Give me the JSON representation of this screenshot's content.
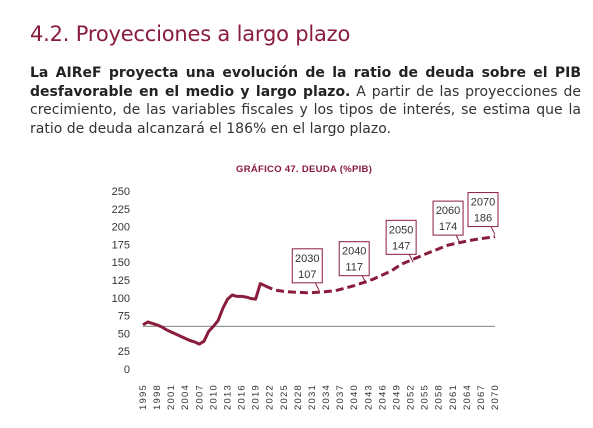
{
  "section": {
    "title": "4.2. Proyecciones a largo plazo"
  },
  "paragraph": {
    "bold_text": "La AIReF proyecta una evolución de la ratio de deuda sobre el PIB desfavorable en el medio y largo plazo.",
    "rest_text": " A partir de las proyecciones de crecimiento, de las variables fiscales y los tipos de interés, se estima que la ratio de deuda alcanzará el 186% en el largo plazo."
  },
  "colors": {
    "accent": "#8a1c3c",
    "text": "#333333",
    "reference_line": "#555555"
  },
  "chart_data": {
    "type": "line",
    "title": "GRÁFICO 47.  DEUDA (%PIB)",
    "xlabel": "",
    "ylabel": "",
    "ylim": [
      0,
      250
    ],
    "xlim": [
      1995,
      2070
    ],
    "y_ticks": [
      0,
      25,
      50,
      75,
      100,
      125,
      150,
      175,
      200,
      225,
      250
    ],
    "x_ticks": [
      1995,
      1998,
      2001,
      2004,
      2007,
      2010,
      2013,
      2016,
      2019,
      2022,
      2025,
      2028,
      2031,
      2034,
      2037,
      2040,
      2043,
      2046,
      2049,
      2052,
      2055,
      2058,
      2061,
      2064,
      2067,
      2070
    ],
    "grid": false,
    "reference_line": {
      "y": 60
    },
    "series": [
      {
        "style": "solid",
        "x": [
          1995,
          1996,
          1997,
          1998,
          1999,
          2000,
          2001,
          2002,
          2003,
          2004,
          2005,
          2006,
          2007,
          2008,
          2009,
          2010,
          2011,
          2012,
          2013,
          2014,
          2015,
          2016,
          2017,
          2018,
          2019,
          2020,
          2021
        ],
        "values": [
          62,
          66,
          64,
          62,
          59,
          55,
          52,
          49,
          46,
          43,
          40,
          38,
          35,
          39,
          53,
          60,
          68,
          85,
          98,
          104,
          102,
          102,
          101,
          99,
          98,
          120,
          117
        ]
      },
      {
        "style": "dashed",
        "x": [
          2021,
          2023,
          2025,
          2027,
          2030,
          2033,
          2036,
          2040,
          2044,
          2048,
          2050,
          2055,
          2060,
          2065,
          2070
        ],
        "values": [
          117,
          111,
          109,
          108,
          107,
          108,
          110,
          117,
          126,
          138,
          147,
          161,
          174,
          181,
          186
        ]
      }
    ],
    "annotations": [
      {
        "year": "2030",
        "value": "107"
      },
      {
        "year": "2040",
        "value": "117"
      },
      {
        "year": "2050",
        "value": "147"
      },
      {
        "year": "2060",
        "value": "174"
      },
      {
        "year": "2070",
        "value": "186"
      }
    ]
  }
}
